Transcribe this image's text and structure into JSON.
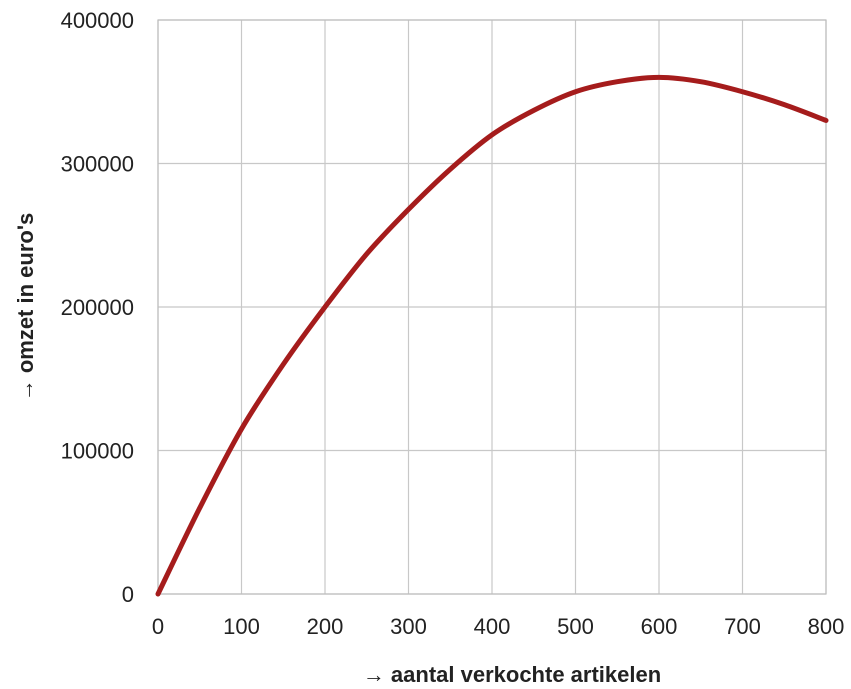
{
  "chart_data": {
    "type": "line",
    "title": "",
    "xlabel": "→ aantal verkochte artikelen",
    "ylabel": "→ omzet in euro's",
    "xlim": [
      0,
      800
    ],
    "ylim": [
      0,
      400000
    ],
    "x_ticks": [
      0,
      100,
      200,
      300,
      400,
      500,
      600,
      700,
      800
    ],
    "y_ticks": [
      0,
      100000,
      200000,
      300000,
      400000
    ],
    "x_tick_labels": [
      "0",
      "100",
      "200",
      "300",
      "400",
      "500",
      "600",
      "700",
      "800"
    ],
    "y_tick_labels": [
      "0",
      "100000",
      "200000",
      "300000",
      "400000"
    ],
    "grid": true,
    "legend": "none",
    "series": [
      {
        "color": "#a51c1c",
        "x": [
          0,
          50,
          100,
          150,
          200,
          250,
          300,
          350,
          400,
          450,
          500,
          550,
          600,
          650,
          700,
          750,
          800
        ],
        "y": [
          0,
          60000,
          115000,
          160000,
          200000,
          237000,
          268000,
          296000,
          320000,
          337000,
          350000,
          357000,
          360000,
          357000,
          350000,
          341000,
          330000
        ]
      }
    ]
  }
}
